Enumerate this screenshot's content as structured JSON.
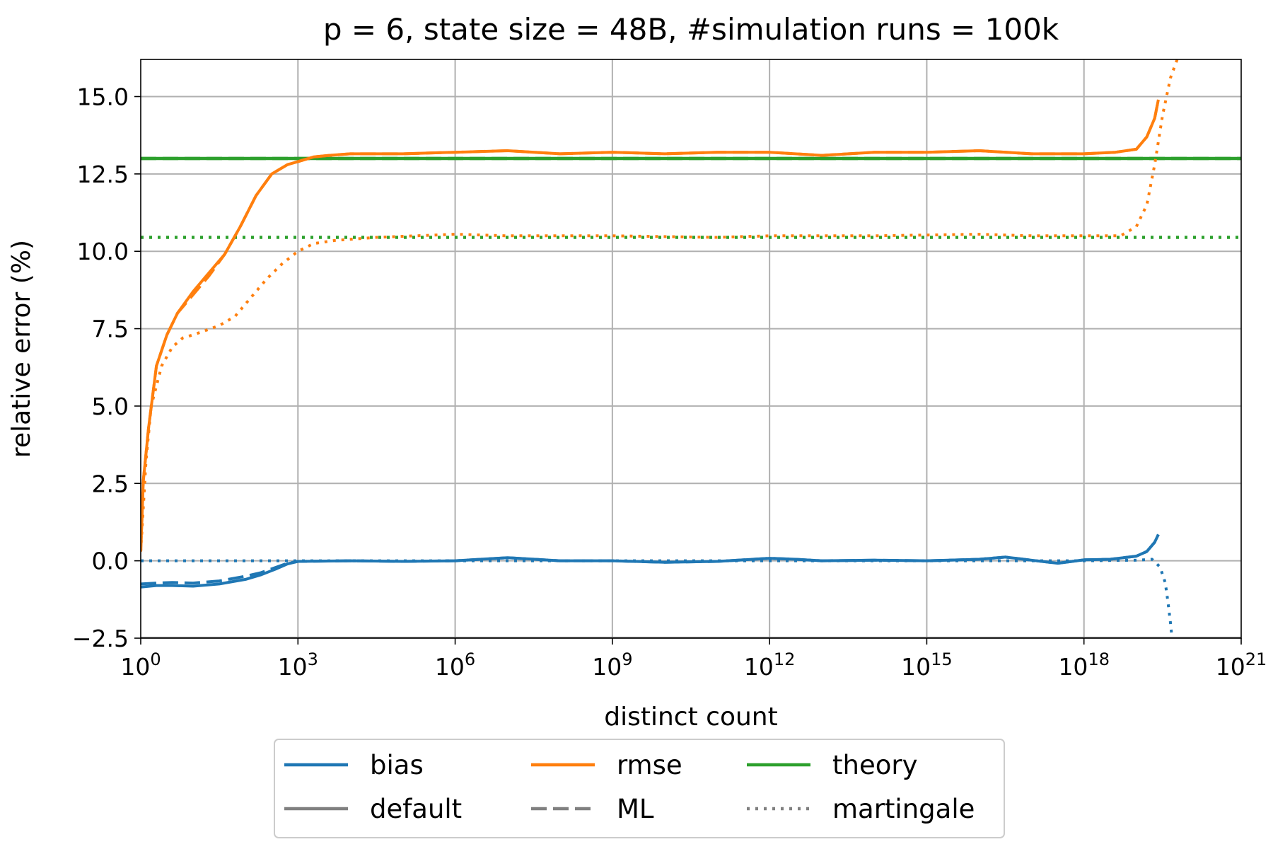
{
  "chart_data": {
    "type": "line",
    "title": "p = 6, state size = 48B, #simulation runs = 100k",
    "xlabel": "distinct count",
    "ylabel": "relative error (%)",
    "x_scale": "log10",
    "x_exponent_range": [
      0,
      21
    ],
    "xticks": [
      {
        "base": "10",
        "exp": "0",
        "value": 0
      },
      {
        "base": "10",
        "exp": "3",
        "value": 3
      },
      {
        "base": "10",
        "exp": "6",
        "value": 6
      },
      {
        "base": "10",
        "exp": "9",
        "value": 9
      },
      {
        "base": "10",
        "exp": "12",
        "value": 12
      },
      {
        "base": "10",
        "exp": "15",
        "value": 15
      },
      {
        "base": "10",
        "exp": "18",
        "value": 18
      },
      {
        "base": "10",
        "exp": "21",
        "value": 21
      }
    ],
    "ylim": [
      -2.5,
      16.2
    ],
    "yticks": [
      {
        "label": "−2.5",
        "value": -2.5
      },
      {
        "label": "0.0",
        "value": 0
      },
      {
        "label": "2.5",
        "value": 2.5
      },
      {
        "label": "5.0",
        "value": 5
      },
      {
        "label": "7.5",
        "value": 7.5
      },
      {
        "label": "10.0",
        "value": 10
      },
      {
        "label": "12.5",
        "value": 12.5
      },
      {
        "label": "15.0",
        "value": 15
      }
    ],
    "grid": true,
    "colors": {
      "bias": "#1f77b4",
      "rmse": "#ff7f0e",
      "theory": "#2ca02c",
      "default": "#808080"
    },
    "series": [
      {
        "name": "theory-default",
        "metric": "theory",
        "estimator": "default",
        "x": [
          0,
          21
        ],
        "y": [
          13.0,
          13.0
        ]
      },
      {
        "name": "theory-ml",
        "metric": "theory",
        "estimator": "ML",
        "x": [
          0,
          21
        ],
        "y": [
          13.0,
          13.0
        ]
      },
      {
        "name": "theory-martingale",
        "metric": "theory",
        "estimator": "martingale",
        "x": [
          0,
          21
        ],
        "y": [
          10.45,
          10.45
        ]
      },
      {
        "name": "rmse-default",
        "metric": "rmse",
        "estimator": "default",
        "x": [
          0,
          0.05,
          0.15,
          0.3,
          0.5,
          0.7,
          1.0,
          1.3,
          1.6,
          1.9,
          2.2,
          2.5,
          2.8,
          3.0,
          3.3,
          3.6,
          4.0,
          5,
          6,
          7,
          8,
          9,
          10,
          11,
          12,
          13,
          14,
          15,
          16,
          17,
          18,
          18.6,
          19.0,
          19.2,
          19.35,
          19.42
        ],
        "y": [
          0.3,
          2.6,
          4.3,
          6.3,
          7.3,
          8.0,
          8.7,
          9.3,
          9.9,
          10.8,
          11.8,
          12.5,
          12.8,
          12.9,
          13.05,
          13.1,
          13.15,
          13.15,
          13.2,
          13.25,
          13.15,
          13.2,
          13.15,
          13.2,
          13.2,
          13.1,
          13.2,
          13.2,
          13.25,
          13.15,
          13.15,
          13.2,
          13.3,
          13.7,
          14.3,
          14.9
        ]
      },
      {
        "name": "rmse-ml",
        "metric": "rmse",
        "estimator": "ML",
        "x": [
          0,
          0.05,
          0.15,
          0.3,
          0.5,
          0.7,
          1.0,
          1.3,
          1.6,
          1.9,
          2.2,
          2.5,
          2.8,
          3.0,
          3.3,
          3.6,
          4.0,
          5,
          6,
          7,
          8,
          9,
          10,
          11,
          12,
          13,
          14,
          15,
          16,
          17,
          18,
          18.6,
          19.0,
          19.2,
          19.35,
          19.42
        ],
        "y": [
          0.3,
          2.6,
          4.3,
          6.3,
          7.3,
          8.0,
          8.6,
          9.2,
          9.9,
          10.8,
          11.8,
          12.5,
          12.8,
          12.9,
          13.05,
          13.1,
          13.15,
          13.15,
          13.2,
          13.25,
          13.15,
          13.2,
          13.15,
          13.2,
          13.2,
          13.1,
          13.2,
          13.2,
          13.25,
          13.15,
          13.15,
          13.2,
          13.3,
          13.7,
          14.3,
          14.9
        ]
      },
      {
        "name": "rmse-martingale",
        "metric": "rmse",
        "estimator": "martingale",
        "x": [
          0,
          0.1,
          0.2,
          0.4,
          0.6,
          0.8,
          1.0,
          1.5,
          1.8,
          2.1,
          2.4,
          2.7,
          3.0,
          3.3,
          3.7,
          4.5,
          6,
          7,
          9,
          11,
          12,
          14,
          16,
          17,
          18,
          18.7,
          19.0,
          19.2,
          19.35,
          19.5,
          19.65,
          19.8
        ],
        "y": [
          0.3,
          3.2,
          5.0,
          6.3,
          6.9,
          7.2,
          7.3,
          7.6,
          7.9,
          8.5,
          9.1,
          9.6,
          10.0,
          10.25,
          10.35,
          10.45,
          10.55,
          10.5,
          10.5,
          10.45,
          10.5,
          10.5,
          10.55,
          10.5,
          10.5,
          10.5,
          10.8,
          11.5,
          12.8,
          14.4,
          15.6,
          16.3
        ]
      },
      {
        "name": "bias-default",
        "metric": "bias",
        "estimator": "default",
        "x": [
          0,
          0.3,
          0.6,
          1.0,
          1.5,
          2.0,
          2.3,
          2.6,
          2.8,
          3.0,
          4,
          5,
          6,
          7,
          8,
          9,
          10,
          11,
          12,
          12.5,
          13,
          14,
          15,
          16,
          16.5,
          17,
          17.5,
          18,
          18.5,
          19.0,
          19.2,
          19.35,
          19.42
        ],
        "y": [
          -0.85,
          -0.8,
          -0.8,
          -0.82,
          -0.75,
          -0.6,
          -0.45,
          -0.25,
          -0.1,
          -0.02,
          0.0,
          -0.02,
          0.0,
          0.1,
          0.0,
          0.0,
          -0.05,
          -0.02,
          0.08,
          0.05,
          0.0,
          0.02,
          0.0,
          0.05,
          0.12,
          0.02,
          -0.08,
          0.03,
          0.05,
          0.15,
          0.3,
          0.6,
          0.85
        ]
      },
      {
        "name": "bias-ml",
        "metric": "bias",
        "estimator": "ML",
        "x": [
          0,
          0.3,
          0.6,
          1.0,
          1.5,
          2.0,
          2.3,
          2.6,
          2.8,
          3.0,
          4,
          5,
          6,
          7,
          8,
          9,
          10,
          11,
          12,
          12.5,
          13,
          14,
          15,
          16,
          16.5,
          17,
          17.5,
          18,
          18.5,
          19.0,
          19.2,
          19.35,
          19.42
        ],
        "y": [
          -0.75,
          -0.72,
          -0.7,
          -0.72,
          -0.65,
          -0.5,
          -0.38,
          -0.2,
          -0.08,
          -0.02,
          0.0,
          -0.02,
          0.0,
          0.1,
          0.0,
          0.0,
          -0.05,
          -0.02,
          0.08,
          0.05,
          0.0,
          0.02,
          0.0,
          0.05,
          0.12,
          0.02,
          -0.08,
          0.03,
          0.05,
          0.15,
          0.3,
          0.6,
          0.85
        ]
      },
      {
        "name": "bias-martingale",
        "metric": "bias",
        "estimator": "martingale",
        "x": [
          0,
          2,
          4,
          6,
          8,
          10,
          12,
          14,
          16,
          18,
          19.0,
          19.3,
          19.45,
          19.55,
          19.6,
          19.65,
          19.68
        ],
        "y": [
          0.0,
          0.0,
          0.0,
          0.0,
          0.0,
          0.0,
          0.0,
          0.0,
          0.0,
          0.0,
          0.02,
          0.05,
          -0.2,
          -0.7,
          -1.3,
          -2.0,
          -2.5
        ]
      },
      {
        "name": "default-baseline",
        "metric": "default",
        "estimator": "default",
        "x": [
          0,
          21
        ],
        "y": [
          -2.5,
          -2.5
        ]
      }
    ],
    "legend": {
      "placement": "bottom-center",
      "entries": [
        {
          "label": "bias",
          "color": "#1f77b4",
          "style": "solid"
        },
        {
          "label": "rmse",
          "color": "#ff7f0e",
          "style": "solid"
        },
        {
          "label": "theory",
          "color": "#2ca02c",
          "style": "solid"
        },
        {
          "label": "default",
          "color": "#808080",
          "style": "solid"
        },
        {
          "label": "ML",
          "color": "#808080",
          "style": "dashed"
        },
        {
          "label": "martingale",
          "color": "#808080",
          "style": "dotted"
        }
      ]
    }
  }
}
